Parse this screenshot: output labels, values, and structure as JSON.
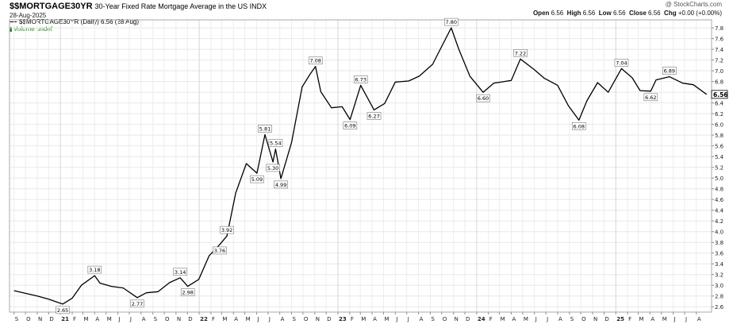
{
  "header": {
    "symbol": "$$MORTGAGE30YR",
    "description": "30-Year Fixed Rate Mortgage Average in the US INDX",
    "date": "28-Aug-2025",
    "watermark": "@ StockCharts.com",
    "ohlc": {
      "open_label": "Open",
      "open": "6.56",
      "high_label": "High",
      "high": "6.56",
      "low_label": "Low",
      "low": "6.56",
      "close_label": "Close",
      "close": "6.56",
      "chg_label": "Chg",
      "chg": "+0.00 (+0.00%)"
    },
    "legend_line": "$$MORTGAGE30YR (Daily) 6.56 (28 Aug)",
    "legend_volume": "Volume undef"
  },
  "chart_data": {
    "type": "line",
    "series": [
      {
        "name": "$$MORTGAGE30YR",
        "color": "#000000",
        "points": [
          [
            "2020-09-01",
            2.9
          ],
          [
            "2020-10-01",
            2.85
          ],
          [
            "2020-11-01",
            2.8
          ],
          [
            "2020-12-01",
            2.74
          ],
          [
            "2021-01-07",
            2.65
          ],
          [
            "2021-02-01",
            2.76
          ],
          [
            "2021-02-25",
            3.0
          ],
          [
            "2021-04-01",
            3.18
          ],
          [
            "2021-04-15",
            3.04
          ],
          [
            "2021-05-15",
            2.98
          ],
          [
            "2021-06-15",
            2.95
          ],
          [
            "2021-07-22",
            2.77
          ],
          [
            "2021-08-15",
            2.86
          ],
          [
            "2021-09-15",
            2.88
          ],
          [
            "2021-10-15",
            3.05
          ],
          [
            "2021-11-12",
            3.14
          ],
          [
            "2021-12-02",
            2.98
          ],
          [
            "2021-12-31",
            3.11
          ],
          [
            "2022-01-27",
            3.55
          ],
          [
            "2022-02-24",
            3.76
          ],
          [
            "2022-03-15",
            3.92
          ],
          [
            "2022-04-07",
            4.72
          ],
          [
            "2022-05-05",
            5.27
          ],
          [
            "2022-06-02",
            5.09
          ],
          [
            "2022-06-23",
            5.81
          ],
          [
            "2022-07-14",
            5.3
          ],
          [
            "2022-07-21",
            5.54
          ],
          [
            "2022-08-04",
            4.99
          ],
          [
            "2022-09-01",
            5.66
          ],
          [
            "2022-09-29",
            6.7
          ],
          [
            "2022-10-20",
            6.94
          ],
          [
            "2022-11-03",
            7.08
          ],
          [
            "2022-11-17",
            6.61
          ],
          [
            "2022-12-15",
            6.31
          ],
          [
            "2023-01-12",
            6.33
          ],
          [
            "2023-02-02",
            6.09
          ],
          [
            "2023-03-02",
            6.73
          ],
          [
            "2023-04-06",
            6.27
          ],
          [
            "2023-05-04",
            6.39
          ],
          [
            "2023-06-01",
            6.79
          ],
          [
            "2023-07-06",
            6.81
          ],
          [
            "2023-08-03",
            6.9
          ],
          [
            "2023-09-07",
            7.12
          ],
          [
            "2023-10-26",
            7.8
          ],
          [
            "2023-11-15",
            7.4
          ],
          [
            "2023-12-14",
            6.9
          ],
          [
            "2024-01-18",
            6.6
          ],
          [
            "2024-02-15",
            6.77
          ],
          [
            "2024-04-01",
            6.82
          ],
          [
            "2024-04-25",
            7.22
          ],
          [
            "2024-05-30",
            7.03
          ],
          [
            "2024-06-27",
            6.86
          ],
          [
            "2024-08-01",
            6.73
          ],
          [
            "2024-08-29",
            6.35
          ],
          [
            "2024-09-26",
            6.08
          ],
          [
            "2024-10-17",
            6.44
          ],
          [
            "2024-11-14",
            6.78
          ],
          [
            "2024-12-12",
            6.6
          ],
          [
            "2025-01-16",
            7.04
          ],
          [
            "2025-02-13",
            6.87
          ],
          [
            "2025-03-06",
            6.63
          ],
          [
            "2025-04-03",
            6.62
          ],
          [
            "2025-04-17",
            6.83
          ],
          [
            "2025-05-22",
            6.89
          ],
          [
            "2025-06-26",
            6.77
          ],
          [
            "2025-07-24",
            6.74
          ],
          [
            "2025-08-28",
            6.56
          ]
        ]
      }
    ],
    "annotations": [
      {
        "date": "2021-01-07",
        "value": 2.65,
        "label": "2.65",
        "pos": "below"
      },
      {
        "date": "2021-04-01",
        "value": 3.18,
        "label": "3.18",
        "pos": "above"
      },
      {
        "date": "2021-07-22",
        "value": 2.77,
        "label": "2.77",
        "pos": "below"
      },
      {
        "date": "2021-11-12",
        "value": 3.14,
        "label": "3.14",
        "pos": "above"
      },
      {
        "date": "2021-12-02",
        "value": 2.98,
        "label": "2.98",
        "pos": "below"
      },
      {
        "date": "2022-03-15",
        "value": 3.92,
        "label": "3.92",
        "pos": "above"
      },
      {
        "date": "2022-02-24",
        "value": 3.76,
        "label": "3.76",
        "pos": "below"
      },
      {
        "date": "2022-06-02",
        "value": 5.09,
        "label": "5.09",
        "pos": "below"
      },
      {
        "date": "2022-06-23",
        "value": 5.81,
        "label": "5.81",
        "pos": "above"
      },
      {
        "date": "2022-07-14",
        "value": 5.3,
        "label": "5.30",
        "pos": "below"
      },
      {
        "date": "2022-07-21",
        "value": 5.54,
        "label": "5.54",
        "pos": "above"
      },
      {
        "date": "2022-08-04",
        "value": 4.99,
        "label": "4.99",
        "pos": "below"
      },
      {
        "date": "2022-11-03",
        "value": 7.08,
        "label": "7.08",
        "pos": "above"
      },
      {
        "date": "2023-02-02",
        "value": 6.09,
        "label": "6.09",
        "pos": "below"
      },
      {
        "date": "2023-03-02",
        "value": 6.73,
        "label": "6.73",
        "pos": "above"
      },
      {
        "date": "2023-04-06",
        "value": 6.27,
        "label": "6.27",
        "pos": "below"
      },
      {
        "date": "2023-10-26",
        "value": 7.8,
        "label": "7.80",
        "pos": "above"
      },
      {
        "date": "2024-01-18",
        "value": 6.6,
        "label": "6.60",
        "pos": "below"
      },
      {
        "date": "2024-04-25",
        "value": 7.22,
        "label": "7.22",
        "pos": "above"
      },
      {
        "date": "2024-09-26",
        "value": 6.08,
        "label": "6.08",
        "pos": "below"
      },
      {
        "date": "2025-01-16",
        "value": 7.04,
        "label": "7.04",
        "pos": "above"
      },
      {
        "date": "2025-04-03",
        "value": 6.62,
        "label": "6.62",
        "pos": "below"
      },
      {
        "date": "2025-05-22",
        "value": 6.89,
        "label": "6.89",
        "pos": "above"
      }
    ],
    "last_value_label": "6.56",
    "y_axis": {
      "side": "right",
      "ylim": [
        2.5,
        7.95
      ],
      "ticks": [
        "2.6",
        "2.8",
        "3.0",
        "3.2",
        "3.4",
        "3.6",
        "3.8",
        "4.0",
        "4.2",
        "4.4",
        "4.6",
        "4.8",
        "5.0",
        "5.2",
        "5.4",
        "5.6",
        "5.8",
        "6.0",
        "6.2",
        "6.4",
        "6.6",
        "6.8",
        "7.0",
        "7.2",
        "7.4",
        "7.6",
        "7.8"
      ]
    },
    "x_axis": {
      "xlim": [
        "2020-08-20",
        "2025-09-10"
      ],
      "ticks": [
        {
          "date": "2020-09-01",
          "label": "S"
        },
        {
          "date": "2020-10-01",
          "label": "O"
        },
        {
          "date": "2020-11-01",
          "label": "N"
        },
        {
          "date": "2020-12-01",
          "label": "D"
        },
        {
          "date": "2021-01-01",
          "label": "21",
          "bold": true
        },
        {
          "date": "2021-02-01",
          "label": "F"
        },
        {
          "date": "2021-03-01",
          "label": "M"
        },
        {
          "date": "2021-04-01",
          "label": "A"
        },
        {
          "date": "2021-05-01",
          "label": "M"
        },
        {
          "date": "2021-06-01",
          "label": "J"
        },
        {
          "date": "2021-07-01",
          "label": "J"
        },
        {
          "date": "2021-08-01",
          "label": "A"
        },
        {
          "date": "2021-09-01",
          "label": "S"
        },
        {
          "date": "2021-10-01",
          "label": "O"
        },
        {
          "date": "2021-11-01",
          "label": "N"
        },
        {
          "date": "2021-12-01",
          "label": "D"
        },
        {
          "date": "2022-01-01",
          "label": "22",
          "bold": true
        },
        {
          "date": "2022-02-01",
          "label": "F"
        },
        {
          "date": "2022-03-01",
          "label": "M"
        },
        {
          "date": "2022-04-01",
          "label": "A"
        },
        {
          "date": "2022-05-01",
          "label": "M"
        },
        {
          "date": "2022-06-01",
          "label": "J"
        },
        {
          "date": "2022-07-01",
          "label": "J"
        },
        {
          "date": "2022-08-01",
          "label": "A"
        },
        {
          "date": "2022-09-01",
          "label": "S"
        },
        {
          "date": "2022-10-01",
          "label": "O"
        },
        {
          "date": "2022-11-01",
          "label": "N"
        },
        {
          "date": "2022-12-01",
          "label": "D"
        },
        {
          "date": "2023-01-01",
          "label": "23",
          "bold": true
        },
        {
          "date": "2023-02-01",
          "label": "F"
        },
        {
          "date": "2023-03-01",
          "label": "M"
        },
        {
          "date": "2023-04-01",
          "label": "A"
        },
        {
          "date": "2023-05-01",
          "label": "M"
        },
        {
          "date": "2023-06-01",
          "label": "J"
        },
        {
          "date": "2023-07-01",
          "label": "J"
        },
        {
          "date": "2023-08-01",
          "label": "A"
        },
        {
          "date": "2023-09-01",
          "label": "S"
        },
        {
          "date": "2023-10-01",
          "label": "O"
        },
        {
          "date": "2023-11-01",
          "label": "N"
        },
        {
          "date": "2023-12-01",
          "label": "D"
        },
        {
          "date": "2024-01-01",
          "label": "24",
          "bold": true
        },
        {
          "date": "2024-02-01",
          "label": "F"
        },
        {
          "date": "2024-03-01",
          "label": "M"
        },
        {
          "date": "2024-04-01",
          "label": "A"
        },
        {
          "date": "2024-05-01",
          "label": "M"
        },
        {
          "date": "2024-06-01",
          "label": "J"
        },
        {
          "date": "2024-07-01",
          "label": "J"
        },
        {
          "date": "2024-08-01",
          "label": "A"
        },
        {
          "date": "2024-09-01",
          "label": "S"
        },
        {
          "date": "2024-10-01",
          "label": "O"
        },
        {
          "date": "2024-11-01",
          "label": "N"
        },
        {
          "date": "2024-12-01",
          "label": "D"
        },
        {
          "date": "2025-01-01",
          "label": "25",
          "bold": true
        },
        {
          "date": "2025-02-01",
          "label": "F"
        },
        {
          "date": "2025-03-01",
          "label": "M"
        },
        {
          "date": "2025-04-01",
          "label": "A"
        },
        {
          "date": "2025-05-01",
          "label": "M"
        },
        {
          "date": "2025-06-01",
          "label": "J"
        },
        {
          "date": "2025-07-01",
          "label": "J"
        },
        {
          "date": "2025-08-01",
          "label": "A"
        }
      ]
    },
    "grid": true,
    "legend_placement": "top-left"
  }
}
